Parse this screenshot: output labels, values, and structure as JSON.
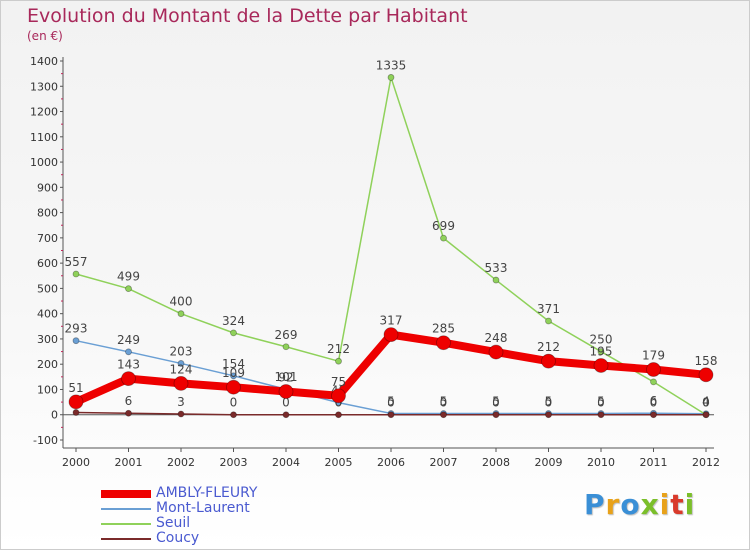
{
  "header": {
    "title": "Evolution du Montant de la Dette par Habitant",
    "subtitle": "(en €)"
  },
  "brand": {
    "letters": [
      "P",
      "r",
      "o",
      "x",
      "i",
      "t",
      "i"
    ],
    "colors": [
      "#3a8fd6",
      "#e8a21a",
      "#3a8fd6",
      "#7bbf2a",
      "#e8a21a",
      "#d93a2b",
      "#7bbf2a"
    ]
  },
  "chart_data": {
    "type": "line",
    "title": "Evolution du Montant de la Dette par Habitant",
    "subtitle": "(en €)",
    "x": [
      "2000",
      "2001",
      "2002",
      "2003",
      "2004",
      "2005",
      "2006",
      "2007",
      "2008",
      "2009",
      "2010",
      "2011",
      "2012"
    ],
    "ylim": [
      -100,
      1400
    ],
    "yticks": [
      -100,
      0,
      100,
      200,
      300,
      400,
      500,
      600,
      700,
      800,
      900,
      1000,
      1100,
      1200,
      1300,
      1400
    ],
    "grid": false,
    "legend": "bottom-left",
    "series": [
      {
        "name": "AMBLY-FLEURY",
        "color": "#ee0000",
        "values": [
          51,
          143,
          124,
          109,
          92,
          75,
          317,
          285,
          248,
          212,
          195,
          179,
          158
        ],
        "labels": [
          "51",
          "143",
          "124",
          "109",
          "92",
          "75",
          "317",
          "285",
          "248",
          "212",
          "195",
          "179",
          "158"
        ]
      },
      {
        "name": "Mont-Laurent",
        "color": "#6a9fd4",
        "values": [
          293,
          249,
          203,
          154,
          101,
          48,
          5,
          5,
          5,
          5,
          5,
          6,
          4
        ],
        "labels": [
          "293",
          "249",
          "203",
          "154",
          "101",
          "48",
          "5",
          "5",
          "5",
          "5",
          "5",
          "6",
          "4"
        ]
      },
      {
        "name": "Seuil",
        "color": "#8fd15a",
        "values": [
          557,
          499,
          400,
          324,
          269,
          212,
          1335,
          699,
          533,
          371,
          250,
          130,
          0
        ],
        "labels": [
          "557",
          "499",
          "400",
          "324",
          "269",
          "212",
          "1335",
          "699",
          "533",
          "371",
          "250",
          "",
          "0"
        ]
      },
      {
        "name": "Coucy",
        "color": "#7a2a2a",
        "values": [
          9,
          6,
          3,
          0,
          0,
          0,
          0,
          0,
          0,
          0,
          0,
          0,
          0
        ],
        "labels": [
          "9",
          "6",
          "3",
          "0",
          "0",
          "0",
          "0",
          "0",
          "0",
          "0",
          "0",
          "0",
          "0"
        ]
      }
    ]
  }
}
